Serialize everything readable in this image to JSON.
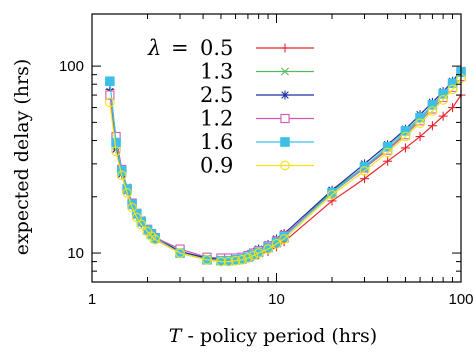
{
  "chart_data": {
    "type": "line",
    "xlabel": "T - policy period (hrs)",
    "ylabel": "expected delay (hrs)",
    "x_scale": "log",
    "y_scale": "log",
    "xlim": [
      1,
      100
    ],
    "ylim": [
      7,
      190
    ],
    "x_ticks": [
      1,
      10,
      100
    ],
    "y_ticks": [
      10,
      100
    ],
    "x_tick_labels": [
      "1",
      "10",
      "100"
    ],
    "y_tick_labels": [
      "10",
      "100"
    ],
    "grid": false,
    "legend_position": "top-center",
    "legend_prefix": "λ = ",
    "series": [
      {
        "name": "0.5",
        "color": "#e8242f",
        "marker": "plus",
        "x": [
          1.25,
          1.35,
          1.45,
          1.55,
          1.65,
          1.75,
          1.85,
          2.0,
          2.1,
          2.2,
          3.0,
          4.2,
          5.0,
          5.5,
          6.0,
          6.5,
          7.0,
          7.5,
          8.0,
          9.0,
          10.0,
          11.0,
          20.0,
          30.0,
          40.0,
          50.0,
          60.0,
          70.0,
          80.0,
          90.0,
          100.0
        ],
        "y": [
          75,
          38,
          27,
          22,
          18,
          16,
          14.5,
          13,
          12.3,
          11.8,
          10,
          9.2,
          9.0,
          9.0,
          9.1,
          9.2,
          9.4,
          9.6,
          9.8,
          10.2,
          10.8,
          11.5,
          19,
          25,
          31,
          36.5,
          42,
          48,
          54,
          60,
          70
        ]
      },
      {
        "name": "1.3",
        "color": "#5cb85c",
        "marker": "x",
        "x": [
          1.25,
          1.35,
          1.45,
          1.55,
          1.65,
          1.75,
          1.85,
          2.0,
          2.1,
          2.2,
          3.0,
          4.2,
          5.0,
          5.5,
          6.0,
          6.5,
          7.0,
          7.5,
          8.0,
          9.0,
          10.0,
          11.0,
          20.0,
          30.0,
          40.0,
          50.0,
          60.0,
          70.0,
          80.0,
          90.0,
          100.0
        ],
        "y": [
          82,
          40,
          28,
          22.5,
          18.5,
          16.5,
          15,
          13.5,
          12.8,
          12.2,
          10.2,
          9.3,
          9.2,
          9.2,
          9.3,
          9.4,
          9.6,
          9.9,
          10.2,
          10.8,
          11.5,
          12.3,
          21.5,
          29,
          36,
          44,
          52,
          61,
          70,
          80,
          92
        ]
      },
      {
        "name": "2.5",
        "color": "#1a2fa3",
        "marker": "asterisk",
        "x": [
          1.25,
          1.35,
          1.45,
          1.55,
          1.65,
          1.75,
          1.85,
          2.0,
          2.1,
          2.2,
          3.0,
          4.2,
          5.0,
          5.5,
          6.0,
          6.5,
          7.0,
          7.5,
          8.0,
          9.0,
          10.0,
          11.0,
          20.0,
          30.0,
          40.0,
          50.0,
          60.0,
          70.0,
          80.0,
          90.0,
          100.0
        ],
        "y": [
          73,
          36,
          26.5,
          21.5,
          18,
          16,
          14.5,
          13.2,
          12.5,
          12,
          10.2,
          9.4,
          9.3,
          9.3,
          9.4,
          9.5,
          9.8,
          10.1,
          10.5,
          11.1,
          11.9,
          12.7,
          21.7,
          30,
          38,
          46,
          55,
          64,
          73,
          83,
          95
        ]
      },
      {
        "name": "1.2",
        "color": "#d159b4",
        "marker": "square-open",
        "x": [
          1.25,
          1.35,
          1.45,
          1.55,
          1.65,
          1.75,
          1.85,
          2.0,
          2.1,
          2.2,
          3.0,
          4.2,
          5.0,
          5.5,
          6.0,
          6.5,
          7.0,
          7.5,
          8.0,
          9.0,
          10.0,
          11.0,
          20.0,
          30.0,
          40.0,
          50.0,
          60.0,
          70.0,
          80.0,
          90.0,
          100.0
        ],
        "y": [
          70,
          42,
          28,
          22,
          18.5,
          16.3,
          14.8,
          13.4,
          12.7,
          12.1,
          10.5,
          9.5,
          9.4,
          9.4,
          9.4,
          9.5,
          9.7,
          10.0,
          10.3,
          10.9,
          11.6,
          12.4,
          21,
          28.5,
          35.5,
          43,
          51,
          59,
          68,
          77,
          88
        ]
      },
      {
        "name": "1.6",
        "color": "#3ec0e6",
        "marker": "square-filled",
        "x": [
          1.25,
          1.35,
          1.45,
          1.55,
          1.65,
          1.75,
          1.85,
          2.0,
          2.1,
          2.2,
          3.0,
          4.2,
          5.0,
          5.5,
          6.0,
          6.5,
          7.0,
          7.5,
          8.0,
          9.0,
          10.0,
          11.0,
          20.0,
          30.0,
          40.0,
          50.0,
          60.0,
          70.0,
          80.0,
          90.0,
          100.0
        ],
        "y": [
          83,
          39,
          27.5,
          22,
          18.2,
          16.2,
          14.7,
          13.3,
          12.6,
          12.0,
          10.0,
          9.2,
          9.1,
          9.1,
          9.2,
          9.3,
          9.5,
          9.8,
          10.1,
          10.7,
          11.4,
          12.2,
          21,
          29,
          37,
          45,
          53,
          62,
          71,
          81,
          93
        ]
      },
      {
        "name": "0.9",
        "color": "#f2e018",
        "marker": "circle-open",
        "x": [
          1.25,
          1.35,
          1.45,
          1.55,
          1.65,
          1.75,
          1.85,
          2.0,
          2.1,
          2.2,
          3.0,
          4.2,
          5.0,
          5.5,
          6.0,
          6.5,
          7.0,
          7.5,
          8.0,
          9.0,
          10.0,
          11.0,
          20.0,
          30.0,
          40.0,
          50.0,
          60.0,
          70.0,
          80.0,
          90.0,
          100.0
        ],
        "y": [
          64,
          35,
          26,
          21,
          17.5,
          15.5,
          14.2,
          13.0,
          12.3,
          11.8,
          10.0,
          9.2,
          9.0,
          9.0,
          9.1,
          9.2,
          9.4,
          9.7,
          10.0,
          10.5,
          11.2,
          11.9,
          20.5,
          27.5,
          34.5,
          42,
          49.5,
          57.5,
          66,
          75,
          86
        ]
      }
    ]
  }
}
